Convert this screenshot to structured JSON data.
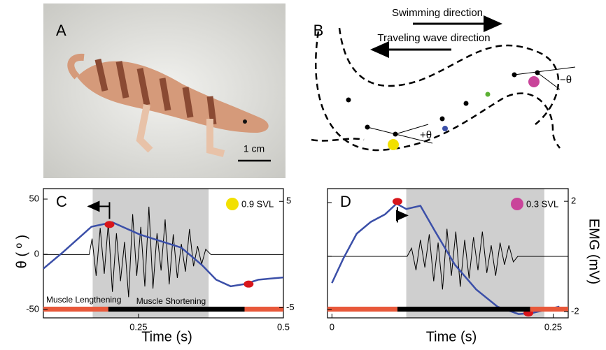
{
  "panel_a": {
    "label": "A",
    "scale_bar": "1 cm"
  },
  "panel_b": {
    "label": "B",
    "swimming": "Swimming direction",
    "wave": "Traveling wave direction",
    "theta_pos": "+θ",
    "theta_neg": "−θ"
  },
  "shared": {
    "ylabel": "θ ( º )",
    "y2label": "EMG (mV)"
  },
  "chart_data": [
    {
      "type": "line",
      "label": "C",
      "xlabel": "Time (s)",
      "legend": {
        "label": "0.9 SVL",
        "color": "#f2e000"
      },
      "xlim": [
        0.086,
        0.5
      ],
      "xticks": [
        0.25,
        0.5
      ],
      "ylim": [
        -57.6,
        59.5
      ],
      "yticks": [
        -50,
        0,
        50
      ],
      "y2lim": [
        -5.95,
        6.2
      ],
      "y2ticks": [
        -5,
        5
      ],
      "shaded": [
        0.171,
        0.371
      ],
      "phases": {
        "lengthening": "Muscle Lengthening",
        "shortening": "Muscle Shortening",
        "segments": [
          {
            "x": [
              0.086,
              0.198
            ],
            "color": "#e8583a"
          },
          {
            "x": [
              0.198,
              0.433
            ],
            "color": "#000000"
          },
          {
            "x": [
              0.433,
              0.5
            ],
            "color": "#e8583a"
          }
        ]
      },
      "theta": {
        "color": "#3b4fa8",
        "x": [
          0.086,
          0.12,
          0.169,
          0.205,
          0.222,
          0.252,
          0.288,
          0.324,
          0.36,
          0.384,
          0.409,
          0.433,
          0.457,
          0.5
        ],
        "values": [
          -13,
          2,
          25,
          29,
          25,
          18,
          12,
          6,
          -10,
          -23,
          -29,
          -27,
          -23,
          -21
        ]
      },
      "markers": {
        "color": "#d8161b",
        "x": [
          0.2,
          0.44
        ],
        "values": [
          27,
          -27
        ]
      },
      "emg": {
        "color": "#000000",
        "axis": "y2",
        "x": [
          0.086,
          0.165,
          0.17,
          0.177,
          0.184,
          0.191,
          0.198,
          0.205,
          0.212,
          0.219,
          0.226,
          0.233,
          0.24,
          0.247,
          0.254,
          0.261,
          0.268,
          0.275,
          0.282,
          0.289,
          0.296,
          0.303,
          0.31,
          0.317,
          0.324,
          0.331,
          0.338,
          0.345,
          0.352,
          0.359,
          0.366,
          0.375,
          0.5
        ],
        "values": [
          0,
          0,
          1.5,
          -2,
          2.5,
          -1.8,
          3,
          -3.5,
          2,
          -2.5,
          1.2,
          -4,
          3.8,
          -2,
          2.6,
          -3,
          4.5,
          -3.2,
          2,
          -1.5,
          3.3,
          -2.8,
          1.9,
          -2.2,
          1,
          -1.6,
          2.4,
          -1.1,
          0.8,
          -0.9,
          0.5,
          0,
          0
        ]
      }
    },
    {
      "type": "line",
      "label": "D",
      "xlabel": "Time (s)",
      "legend": {
        "label": "0.3 SVL",
        "color": "#c9449a"
      },
      "xlim": [
        -0.005,
        0.267
      ],
      "xticks": [
        0,
        0.25
      ],
      "ylim": [
        -57.5,
        63
      ],
      "yticks": [
        -50,
        0,
        50
      ],
      "y2lim": [
        -2.23,
        2.46
      ],
      "y2ticks": [
        -2,
        2
      ],
      "shaded": [
        0.084,
        0.24
      ],
      "phases": {
        "segments": [
          {
            "x": [
              -0.005,
              0.074
            ],
            "color": "#e8583a"
          },
          {
            "x": [
              0.074,
              0.224
            ],
            "color": "#000000"
          },
          {
            "x": [
              0.224,
              0.267
            ],
            "color": "#e8583a"
          }
        ]
      },
      "theta": {
        "color": "#3b4fa8",
        "x": [
          0,
          0.013,
          0.028,
          0.044,
          0.06,
          0.073,
          0.084,
          0.1,
          0.116,
          0.139,
          0.163,
          0.187,
          0.211,
          0.226,
          0.257
        ],
        "values": [
          -25,
          -2,
          21,
          32,
          39,
          49,
          44,
          47,
          24,
          -8,
          -31,
          -47,
          -54,
          -53,
          -47
        ]
      },
      "markers": {
        "color": "#d8161b",
        "x": [
          0.074,
          0.222
        ],
        "values": [
          51,
          -53
        ]
      },
      "emg": {
        "color": "#000000",
        "axis": "y2",
        "x": [
          -0.005,
          0.085,
          0.09,
          0.095,
          0.1,
          0.105,
          0.11,
          0.115,
          0.12,
          0.125,
          0.13,
          0.135,
          0.14,
          0.145,
          0.15,
          0.155,
          0.16,
          0.165,
          0.17,
          0.175,
          0.18,
          0.185,
          0.19,
          0.195,
          0.2,
          0.205,
          0.21,
          0.267
        ],
        "values": [
          0,
          0,
          0.3,
          -0.5,
          0.6,
          -0.4,
          0.8,
          -0.9,
          0.5,
          -1.2,
          1,
          -0.7,
          0.9,
          -1.1,
          0.6,
          -0.8,
          0.7,
          -0.5,
          0.9,
          -0.6,
          0.4,
          -0.7,
          0.5,
          -0.3,
          0.4,
          -0.2,
          0,
          0
        ]
      }
    }
  ]
}
